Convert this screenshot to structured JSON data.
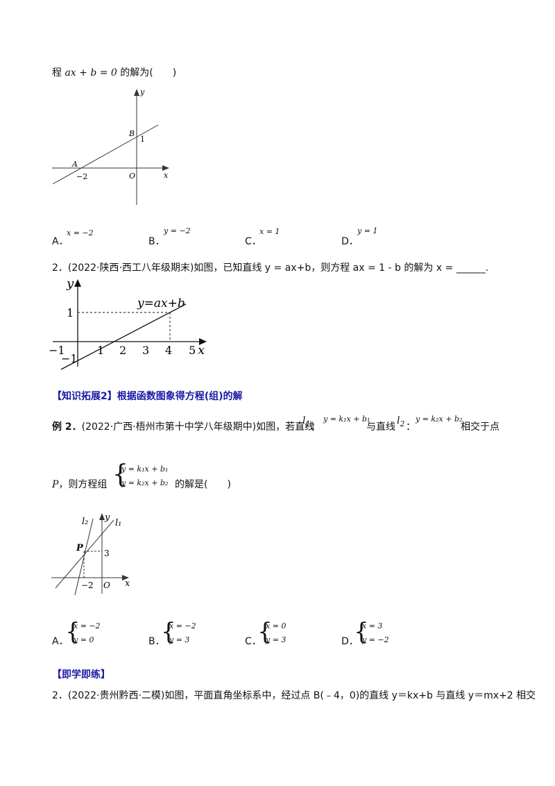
{
  "top_line": {
    "prefix": "程",
    "equation": "ax + b = 0",
    "suffix": "的解为(　　)"
  },
  "fig1": {
    "y": "y",
    "B": "B",
    "one": "1",
    "A": "A",
    "neg2": "−2",
    "O": "O",
    "x": "x"
  },
  "q1_options": [
    {
      "letter": "A．",
      "expr": "x = −2"
    },
    {
      "letter": "B．",
      "expr": "y = −2"
    },
    {
      "letter": "C．",
      "expr": "x = 1"
    },
    {
      "letter": "D．",
      "expr": "y = 1"
    }
  ],
  "q2": {
    "text": "2．(2022·陕西·西工八年级期末)如图，已知直线 y = ax+b，则方程 ax = 1 - b 的解为 x = ______."
  },
  "fig2": {
    "y": "y",
    "x": "x",
    "line_label": "y=ax+b",
    "one": "1",
    "neg1_y": "−1",
    "xticks": [
      "−1",
      "1",
      "2",
      "3",
      "4",
      "5"
    ]
  },
  "section_heading": "【知识拓展2】根据函数图象得方程(组)的解",
  "ex2": {
    "label": "例 2．",
    "text1": "(2022·广西·梧州市第十中学八年级期中)如图，若直线",
    "l1": "l",
    "l1_sub": "1",
    "colon": "：",
    "eq1": "y = k₁x + b₁",
    "mid": "与直线",
    "l2": "l",
    "l2_sub": "2",
    "eq2": "y = k₂x + b₂",
    "tail": "相交于点",
    "line2_P": "P",
    "line2_text": "，则方程组",
    "sys_eq1": "y = k₁x + b₁",
    "sys_eq2": "y = k₂x + b₂",
    "line2_end": "的解是(　　)"
  },
  "fig3": {
    "l2": "l₂",
    "y": "y",
    "l1": "l₁",
    "P": "P",
    "three": "3",
    "neg2": "−2",
    "O": "O",
    "x": "x"
  },
  "ex2_options": [
    {
      "letter": "A．",
      "e1": "x = −2",
      "e2": "y = 0"
    },
    {
      "letter": "B．",
      "e1": "x = −2",
      "e2": "y = 3"
    },
    {
      "letter": "C．",
      "e1": "x = 0",
      "e2": "y = 3"
    },
    {
      "letter": "D．",
      "e1": "x = 3",
      "e2": "y = −2"
    }
  ],
  "practice_heading": "【即学即练】",
  "q3": {
    "text": "2．(2022·贵州黔西·二模)如图，平面直角坐标系中，经过点 B(﹣4，0)的直线 y＝kx+b 与直线 y＝mx+2 相交"
  }
}
